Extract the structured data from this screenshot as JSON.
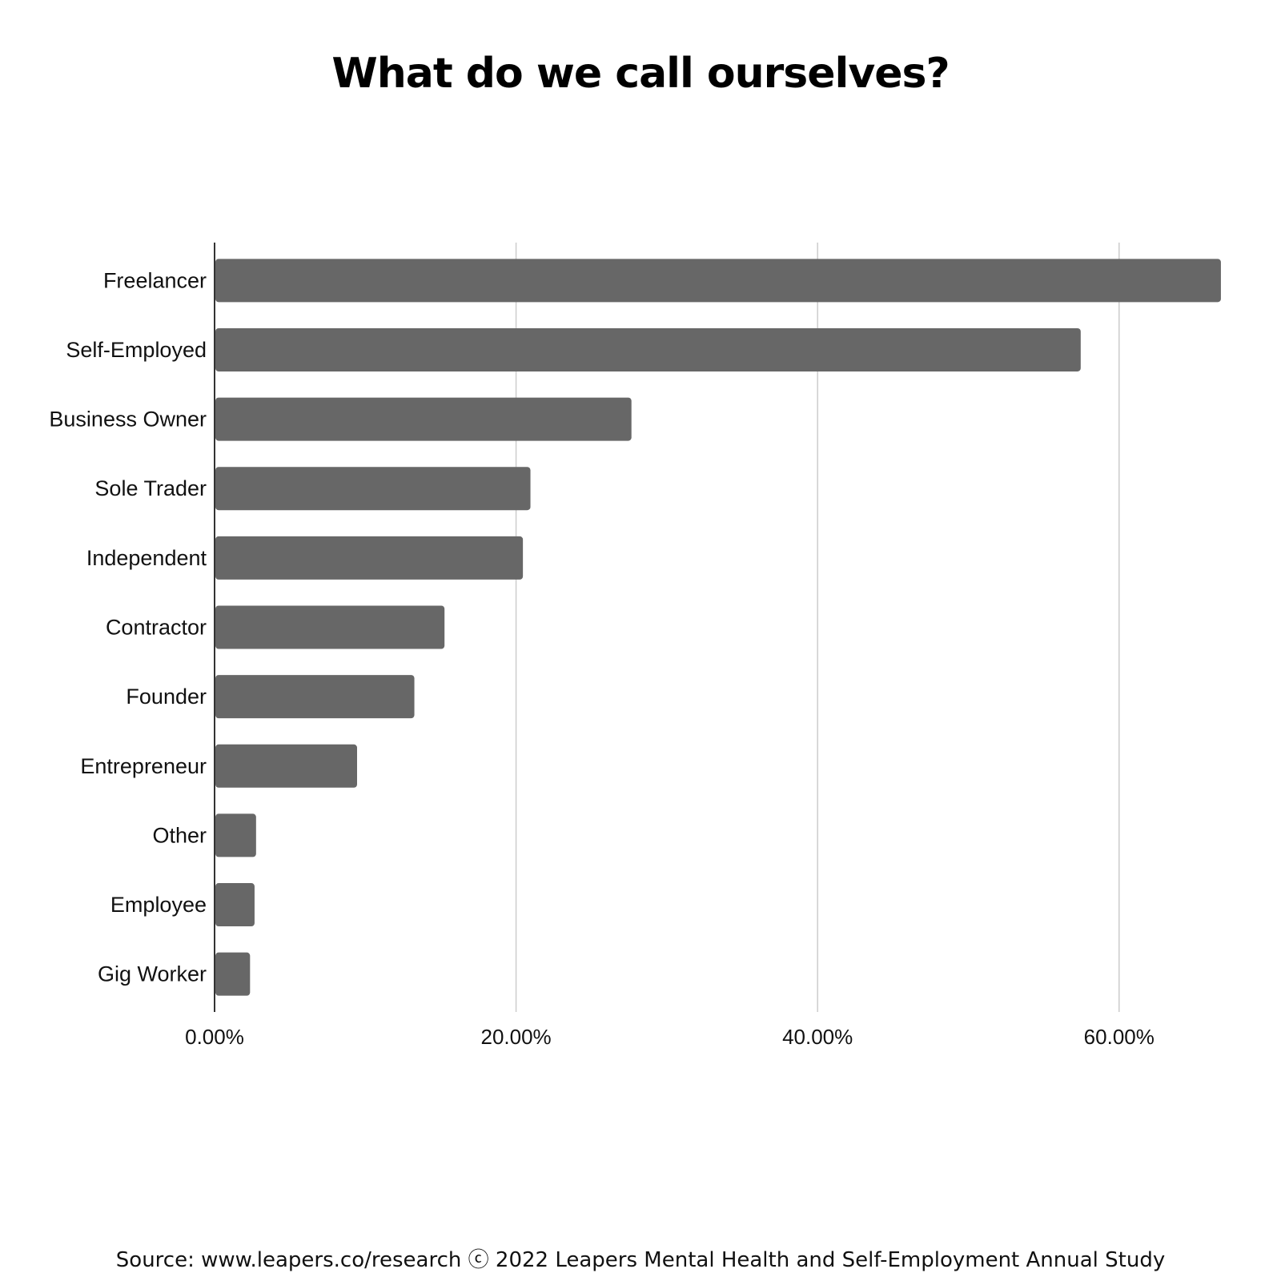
{
  "chart_data": {
    "type": "bar",
    "orientation": "horizontal",
    "title": "What do we call ourselves?",
    "categories": [
      "Freelancer",
      "Self-Employed",
      "Business Owner",
      "Sole Trader",
      "Independent",
      "Contractor",
      "Founder",
      "Entrepreneur",
      "Other",
      "Employee",
      "Gig Worker"
    ],
    "values": [
      66.7,
      57.4,
      27.6,
      20.9,
      20.4,
      15.2,
      13.2,
      9.4,
      2.7,
      2.6,
      2.3
    ],
    "value_unit": "%",
    "xlim": [
      0,
      67.5
    ],
    "xticks": [
      0,
      20,
      40,
      60
    ],
    "xtick_labels": [
      "0.00%",
      "20.00%",
      "40.00%",
      "60.00%"
    ],
    "grid": "vertical",
    "legend": "none",
    "bar_color": "#676767",
    "grid_color": "#cccccc",
    "axis_color": "#333333"
  },
  "footer": {
    "source": "Source: www.leapers.co/research ⓒ 2022 Leapers Mental Health and Self-Employment Annual Study"
  }
}
